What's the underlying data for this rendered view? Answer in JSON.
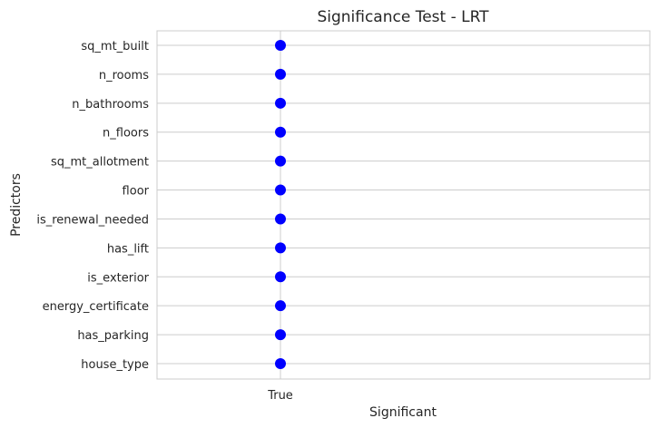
{
  "chart_data": {
    "type": "scatter",
    "title": "Significance Test - LRT",
    "xlabel": "Significant",
    "ylabel": "Predictors",
    "x_categories": [
      "True"
    ],
    "categories": [
      "sq_mt_built",
      "n_rooms",
      "n_bathrooms",
      "n_floors",
      "sq_mt_allotment",
      "floor",
      "is_renewal_needed",
      "has_lift",
      "is_exterior",
      "energy_certificate",
      "has_parking",
      "house_type"
    ],
    "points": [
      {
        "y": "sq_mt_built",
        "x": "True"
      },
      {
        "y": "n_rooms",
        "x": "True"
      },
      {
        "y": "n_bathrooms",
        "x": "True"
      },
      {
        "y": "n_floors",
        "x": "True"
      },
      {
        "y": "sq_mt_allotment",
        "x": "True"
      },
      {
        "y": "floor",
        "x": "True"
      },
      {
        "y": "is_renewal_needed",
        "x": "True"
      },
      {
        "y": "has_lift",
        "x": "True"
      },
      {
        "y": "is_exterior",
        "x": "True"
      },
      {
        "y": "energy_certificate",
        "x": "True"
      },
      {
        "y": "has_parking",
        "x": "True"
      },
      {
        "y": "house_type",
        "x": "True"
      }
    ],
    "marker_color": "#0000ff",
    "grid": true,
    "grid_color": "#cccccc",
    "frame_color": "#cccccc"
  }
}
